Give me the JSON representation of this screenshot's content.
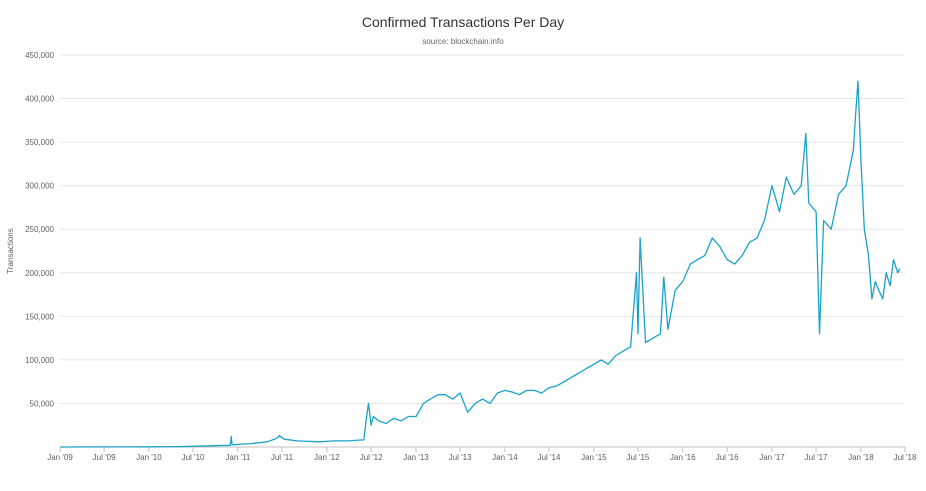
{
  "chart_data": {
    "type": "line",
    "title": "Confirmed Transactions Per Day",
    "subtitle": "source: blockchain.info",
    "ylabel": "Transactions",
    "xlabel": "",
    "xlim": [
      "2009-01-01",
      "2018-07-01"
    ],
    "ylim": [
      0,
      450000
    ],
    "x_ticks": [
      {
        "date": "2009-01-01",
        "label": "Jan '09"
      },
      {
        "date": "2009-07-01",
        "label": "Jul '09"
      },
      {
        "date": "2010-01-01",
        "label": "Jan '10"
      },
      {
        "date": "2010-07-01",
        "label": "Jul '10"
      },
      {
        "date": "2011-01-01",
        "label": "Jan '11"
      },
      {
        "date": "2011-07-01",
        "label": "Jul '11"
      },
      {
        "date": "2012-01-01",
        "label": "Jan '12"
      },
      {
        "date": "2012-07-01",
        "label": "Jul '12"
      },
      {
        "date": "2013-01-01",
        "label": "Jan '13"
      },
      {
        "date": "2013-07-01",
        "label": "Jul '13"
      },
      {
        "date": "2014-01-01",
        "label": "Jan '14"
      },
      {
        "date": "2014-07-01",
        "label": "Jul '14"
      },
      {
        "date": "2015-01-01",
        "label": "Jan '15"
      },
      {
        "date": "2015-07-01",
        "label": "Jul '15"
      },
      {
        "date": "2016-01-01",
        "label": "Jan '16"
      },
      {
        "date": "2016-07-01",
        "label": "Jul '16"
      },
      {
        "date": "2017-01-01",
        "label": "Jan '17"
      },
      {
        "date": "2017-07-01",
        "label": "Jul '17"
      },
      {
        "date": "2018-01-01",
        "label": "Jan '18"
      },
      {
        "date": "2018-07-01",
        "label": "Jul '18"
      }
    ],
    "y_ticks": [
      {
        "value": 50000,
        "label": "50,000"
      },
      {
        "value": 100000,
        "label": "100,000"
      },
      {
        "value": 150000,
        "label": "150,000"
      },
      {
        "value": 200000,
        "label": "200,000"
      },
      {
        "value": 250000,
        "label": "250,000"
      },
      {
        "value": 300000,
        "label": "300,000"
      },
      {
        "value": 350000,
        "label": "350,000"
      },
      {
        "value": 400000,
        "label": "400,000"
      },
      {
        "value": 450000,
        "label": "450,000"
      }
    ],
    "grid": true,
    "legend": "none",
    "colors": {
      "line": "#1aa3c9",
      "grid": "#e6e6e6",
      "axis": "#c0c0c0"
    },
    "series": [
      {
        "x": [
          "2009-01-03",
          "2009-07-01",
          "2010-01-01",
          "2010-05-01",
          "2010-07-01",
          "2010-10-01",
          "2010-12-01",
          "2010-12-05",
          "2010-12-08",
          "2010-12-15",
          "2011-01-01",
          "2011-03-01",
          "2011-05-01",
          "2011-06-10",
          "2011-06-20",
          "2011-07-10",
          "2011-09-01",
          "2011-12-01",
          "2012-02-01",
          "2012-04-01",
          "2012-05-15",
          "2012-06-01",
          "2012-06-10",
          "2012-06-20",
          "2012-07-01",
          "2012-07-10",
          "2012-08-01",
          "2012-09-01",
          "2012-10-01",
          "2012-11-01",
          "2012-12-01",
          "2013-01-01",
          "2013-02-01",
          "2013-03-01",
          "2013-04-01",
          "2013-05-01",
          "2013-06-01",
          "2013-07-01",
          "2013-08-01",
          "2013-09-01",
          "2013-10-01",
          "2013-11-01",
          "2013-12-01",
          "2014-01-01",
          "2014-02-01",
          "2014-03-01",
          "2014-04-01",
          "2014-05-01",
          "2014-06-01",
          "2014-07-01",
          "2014-08-01",
          "2014-09-01",
          "2014-10-01",
          "2014-11-01",
          "2014-12-01",
          "2015-01-01",
          "2015-02-01",
          "2015-03-01",
          "2015-04-01",
          "2015-05-01",
          "2015-06-01",
          "2015-06-25",
          "2015-07-01",
          "2015-07-10",
          "2015-08-01",
          "2015-09-01",
          "2015-10-01",
          "2015-10-15",
          "2015-11-01",
          "2015-12-01",
          "2016-01-01",
          "2016-02-01",
          "2016-03-01",
          "2016-04-01",
          "2016-05-01",
          "2016-06-01",
          "2016-07-01",
          "2016-08-01",
          "2016-09-01",
          "2016-10-01",
          "2016-11-01",
          "2016-12-01",
          "2017-01-01",
          "2017-02-01",
          "2017-03-01",
          "2017-04-01",
          "2017-05-01",
          "2017-05-20",
          "2017-06-01",
          "2017-07-01",
          "2017-07-15",
          "2017-08-01",
          "2017-09-01",
          "2017-10-01",
          "2017-11-01",
          "2017-12-01",
          "2017-12-10",
          "2017-12-20",
          "2018-01-01",
          "2018-01-15",
          "2018-02-01",
          "2018-02-15",
          "2018-03-01",
          "2018-03-15",
          "2018-04-01",
          "2018-04-15",
          "2018-05-01",
          "2018-05-15",
          "2018-06-01",
          "2018-06-10"
        ],
        "values": [
          0,
          100,
          200,
          500,
          800,
          1500,
          2000,
          12000,
          3000,
          2500,
          3000,
          4000,
          6000,
          10000,
          13000,
          9000,
          7000,
          6000,
          7000,
          7000,
          8000,
          8000,
          30000,
          50000,
          25000,
          35000,
          30000,
          27000,
          33000,
          30000,
          35000,
          35000,
          50000,
          55000,
          60000,
          60000,
          55000,
          62000,
          40000,
          50000,
          55000,
          50000,
          62000,
          65000,
          63000,
          60000,
          65000,
          65000,
          62000,
          68000,
          70000,
          75000,
          80000,
          85000,
          90000,
          95000,
          100000,
          95000,
          105000,
          110000,
          115000,
          200000,
          130000,
          240000,
          120000,
          125000,
          130000,
          195000,
          135000,
          180000,
          190000,
          210000,
          215000,
          220000,
          240000,
          230000,
          215000,
          210000,
          220000,
          235000,
          240000,
          260000,
          300000,
          270000,
          310000,
          290000,
          300000,
          360000,
          280000,
          270000,
          130000,
          260000,
          250000,
          290000,
          300000,
          340000,
          380000,
          420000,
          330000,
          250000,
          220000,
          170000,
          190000,
          180000,
          170000,
          200000,
          185000,
          215000,
          200000,
          205000
        ]
      }
    ]
  }
}
